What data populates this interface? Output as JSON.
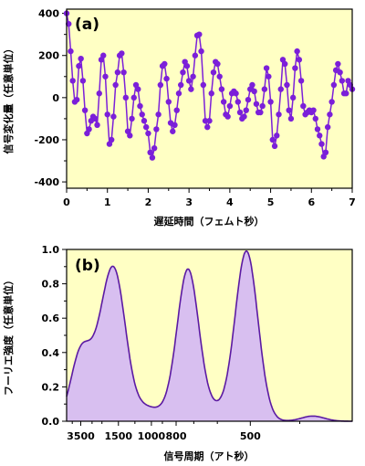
{
  "chart_data": [
    {
      "type": "line",
      "panel_label": "(a)",
      "xlabel": "遅延時間（フェムト秒）",
      "ylabel": "信号変化量（任意単位）",
      "xlim": [
        0,
        7
      ],
      "ylim": [
        -430,
        420
      ],
      "xticks": [
        0,
        1,
        2,
        3,
        4,
        5,
        6,
        7
      ],
      "yticks": [
        -400,
        -200,
        0,
        200,
        400
      ],
      "background_color": "#ffffc4",
      "series_color": "#7b1fd9",
      "markers": true,
      "series": [
        {
          "x": [
            0.0,
            0.05,
            0.1,
            0.15,
            0.2,
            0.25,
            0.3,
            0.35,
            0.4,
            0.45,
            0.5,
            0.55,
            0.6,
            0.65,
            0.7,
            0.75,
            0.8,
            0.85,
            0.9,
            0.95,
            1.0,
            1.05,
            1.1,
            1.15,
            1.2,
            1.25,
            1.3,
            1.35,
            1.4,
            1.45,
            1.5,
            1.55,
            1.6,
            1.65,
            1.7,
            1.75,
            1.8,
            1.85,
            1.9,
            1.95,
            2.0,
            2.05,
            2.1,
            2.15,
            2.2,
            2.25,
            2.3,
            2.35,
            2.4,
            2.45,
            2.5,
            2.55,
            2.6,
            2.65,
            2.7,
            2.75,
            2.8,
            2.85,
            2.9,
            2.95,
            3.0,
            3.05,
            3.1,
            3.15,
            3.2,
            3.25,
            3.3,
            3.35,
            3.4,
            3.45,
            3.5,
            3.55,
            3.6,
            3.65,
            3.7,
            3.75,
            3.8,
            3.85,
            3.9,
            3.95,
            4.0,
            4.05,
            4.1,
            4.15,
            4.2,
            4.25,
            4.3,
            4.35,
            4.4,
            4.45,
            4.5,
            4.55,
            4.6,
            4.65,
            4.7,
            4.75,
            4.8,
            4.85,
            4.9,
            4.95,
            5.0,
            5.05,
            5.1,
            5.15,
            5.2,
            5.25,
            5.3,
            5.35,
            5.4,
            5.45,
            5.5,
            5.55,
            5.6,
            5.65,
            5.7,
            5.75,
            5.8,
            5.85,
            5.9,
            5.95,
            6.0,
            6.05,
            6.1,
            6.15,
            6.2,
            6.25,
            6.3,
            6.35,
            6.4,
            6.45,
            6.5,
            6.55,
            6.6,
            6.65,
            6.7,
            6.75,
            6.8,
            6.85,
            6.9,
            6.95,
            7.0
          ],
          "y": [
            400,
            350,
            220,
            80,
            -20,
            -10,
            150,
            185,
            80,
            -60,
            -170,
            -150,
            -110,
            -90,
            -100,
            -130,
            20,
            180,
            200,
            100,
            -80,
            -220,
            -200,
            -90,
            60,
            120,
            200,
            210,
            120,
            0,
            -160,
            -180,
            -100,
            0,
            60,
            40,
            -40,
            -80,
            -110,
            -140,
            -170,
            -260,
            -285,
            -240,
            -150,
            -80,
            60,
            150,
            160,
            90,
            -20,
            -120,
            -160,
            -130,
            -60,
            20,
            60,
            120,
            170,
            150,
            80,
            40,
            100,
            200,
            295,
            300,
            220,
            60,
            -110,
            -140,
            -110,
            20,
            120,
            170,
            160,
            100,
            40,
            -20,
            -80,
            -90,
            -40,
            20,
            30,
            20,
            -20,
            -70,
            -100,
            -90,
            -60,
            -10,
            40,
            60,
            30,
            -30,
            -70,
            -70,
            -40,
            40,
            140,
            100,
            -20,
            -200,
            -230,
            -180,
            -80,
            40,
            180,
            160,
            60,
            -60,
            -100,
            0,
            140,
            220,
            180,
            80,
            -40,
            -80,
            -70,
            -60,
            -70,
            -60,
            -100,
            -150,
            -180,
            -220,
            -280,
            -260,
            -140,
            -80,
            -20,
            60,
            130,
            160,
            120,
            80,
            20,
            20,
            80,
            60,
            40
          ]
        }
      ]
    },
    {
      "type": "area",
      "panel_label": "(b)",
      "xlabel": "信号周期（アト秒）",
      "ylabel": "フーリエ強度（任意単位）",
      "x_scale": "reciprocal",
      "x_unit": "as",
      "xlim": [
        7000,
        330
      ],
      "ylim": [
        0,
        1.0
      ],
      "xtick_labels": [
        3500,
        1500,
        1000,
        800,
        500
      ],
      "yticks": [
        0.0,
        0.2,
        0.4,
        0.6,
        0.8,
        1.0
      ],
      "background_color": "#ffffc4",
      "series_color": "#5b1aa3",
      "fill_color": "#d8bff0",
      "peaks": [
        {
          "period": 3600,
          "value": 0.32
        },
        {
          "period": 2900,
          "value": 0.09
        },
        {
          "period": 1950,
          "value": 0.34
        },
        {
          "period": 1550,
          "value": 0.7
        },
        {
          "period": 1080,
          "value": 0.07
        },
        {
          "period": 890,
          "value": 0.04
        },
        {
          "period": 730,
          "value": 0.88
        },
        {
          "period": 610,
          "value": 0.06
        },
        {
          "period": 510,
          "value": 0.99
        },
        {
          "period": 380,
          "value": 0.03
        }
      ]
    }
  ]
}
